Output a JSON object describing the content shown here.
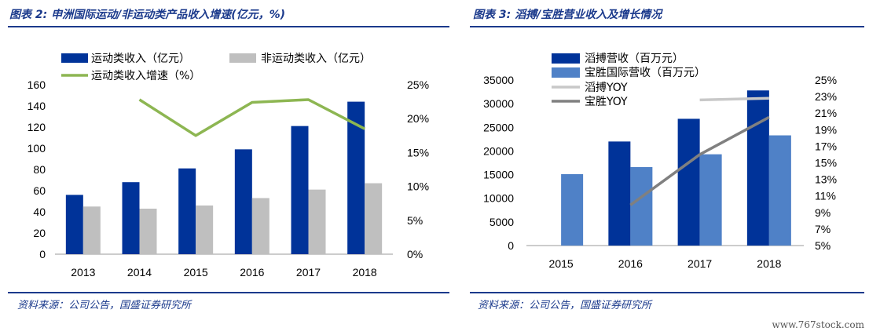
{
  "left": {
    "title": "图表 2:  申洲国际运动/非运动类产品收入增速(亿元，%)",
    "source": "资料来源：公司公告，国盛证券研究所"
  },
  "right": {
    "title": "图表 3:  滔搏/宝胜营业收入及增长情况",
    "source": "资料来源：公司公告，国盛证券研究所"
  },
  "watermark": "www.767stock.com",
  "colors": {
    "navy": "#003399",
    "gray": "#bfbfbf",
    "green": "#8db652",
    "steel": "#4f81c7",
    "lightgray": "#c8c8c8",
    "darkgray": "#808080",
    "title": "#1b3a8c"
  },
  "chart_data": [
    {
      "type": "bar",
      "categories": [
        "2013",
        "2014",
        "2015",
        "2016",
        "2017",
        "2018"
      ],
      "series": [
        {
          "name": "运动类收入（亿元）",
          "kind": "bar",
          "axis": "left",
          "values": [
            56,
            68,
            81,
            99,
            121,
            144
          ]
        },
        {
          "name": "非运动类收入（亿元）",
          "kind": "bar",
          "axis": "left",
          "values": [
            45,
            43,
            46,
            53,
            61,
            67
          ]
        },
        {
          "name": "运动类收入增速（%）",
          "kind": "line",
          "axis": "right",
          "values": [
            null,
            22.8,
            17.5,
            22.4,
            22.8,
            18.5
          ]
        }
      ],
      "ylim": [
        0,
        160
      ],
      "yticks": [
        "0",
        "20",
        "40",
        "60",
        "80",
        "100",
        "120",
        "140",
        "160"
      ],
      "y2lim": [
        0,
        25
      ],
      "y2ticks": [
        "0%",
        "5%",
        "10%",
        "15%",
        "20%",
        "25%"
      ],
      "grid": false,
      "legend": "top"
    },
    {
      "type": "bar",
      "categories": [
        "2015",
        "2016",
        "2017",
        "2018"
      ],
      "series": [
        {
          "name": "滔搏营收（百万元）",
          "kind": "bar",
          "axis": "left",
          "values": [
            null,
            22000,
            26800,
            32800
          ]
        },
        {
          "name": "宝胜国际营收（百万元）",
          "kind": "bar",
          "axis": "left",
          "values": [
            15100,
            16600,
            19300,
            23300
          ]
        },
        {
          "name": "滔搏YOY",
          "kind": "line",
          "axis": "right",
          "values": [
            null,
            null,
            22.6,
            22.8
          ]
        },
        {
          "name": "宝胜YOY",
          "kind": "line",
          "axis": "right",
          "values": [
            null,
            9.9,
            16.0,
            20.5
          ]
        }
      ],
      "ylim": [
        0,
        35000
      ],
      "yticks": [
        "0",
        "5000",
        "10000",
        "15000",
        "20000",
        "25000",
        "30000",
        "35000"
      ],
      "y2lim": [
        5,
        25
      ],
      "y2ticks": [
        "5%",
        "7%",
        "9%",
        "11%",
        "13%",
        "15%",
        "17%",
        "19%",
        "21%",
        "23%",
        "25%"
      ],
      "grid": false,
      "legend": "top-left"
    }
  ]
}
